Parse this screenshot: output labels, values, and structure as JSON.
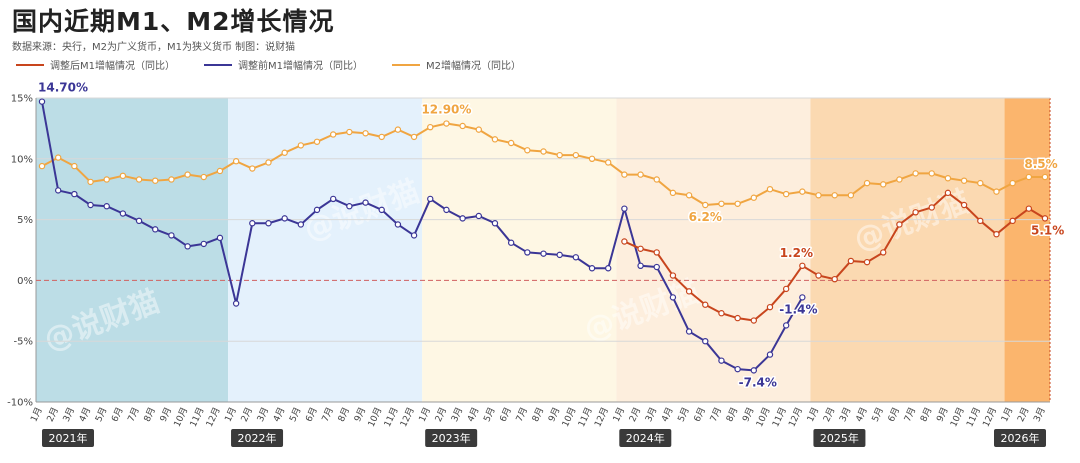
{
  "title": "国内近期M1、M2增长情况",
  "subtitle": "数据来源：央行，M2为广义货币，M1为狭义货币    制图：说财猫",
  "watermark": "@说财猫",
  "colors": {
    "m1_adjusted": "#c8451d",
    "m1_before": "#3b3696",
    "m2": "#f0a541",
    "zero_line": "#d06060",
    "grid": "#d8d8d8",
    "year_bg": "#3a3a3a",
    "band_2021": "#bcdde6",
    "band_2022": "#e4f1fc",
    "band_2023": "#fef7e4",
    "band_2024": "#fdeedd",
    "band_2025": "#fbd9b1",
    "band_2026": "#fbb56d"
  },
  "chart_data": {
    "type": "line",
    "ylim": [
      -10,
      15
    ],
    "yticks": [
      "15%",
      "10%",
      "5%",
      "0%",
      "-5%",
      "-10%"
    ],
    "years": [
      "2021年",
      "2022年",
      "2023年",
      "2024年",
      "2025年",
      "2026年"
    ],
    "month_labels": [
      "1月",
      "2月",
      "3月",
      "4月",
      "5月",
      "6月",
      "7月",
      "8月",
      "9月",
      "10月",
      "11月",
      "12月"
    ],
    "x_start": "2021-01",
    "x_end": "2026-03",
    "series": [
      {
        "name": "调整前M1增幅情况（同比）",
        "key": "m1_before",
        "start": "2021-01",
        "values": [
          14.7,
          7.4,
          7.1,
          6.2,
          6.1,
          5.5,
          4.9,
          4.2,
          3.7,
          2.8,
          3.0,
          3.5,
          -1.9,
          4.7,
          4.7,
          5.1,
          4.6,
          5.8,
          6.7,
          6.1,
          6.4,
          5.8,
          4.6,
          3.7,
          6.7,
          5.8,
          5.1,
          5.3,
          4.7,
          3.1,
          2.3,
          2.2,
          2.1,
          1.9,
          1.0,
          1.0,
          5.9,
          1.2,
          1.1,
          -1.4,
          -4.2,
          -5.0,
          -6.6,
          -7.3,
          -7.4,
          -6.1,
          -3.7,
          -1.4
        ]
      },
      {
        "name": "调整后M1增幅情况（同比）",
        "key": "m1_adjusted",
        "start": "2024-01",
        "values": [
          3.2,
          2.6,
          2.3,
          0.4,
          -0.9,
          -2.0,
          -2.7,
          -3.1,
          -3.3,
          -2.2,
          -0.7,
          1.2,
          0.4,
          0.1,
          1.6,
          1.5,
          2.3,
          4.6,
          5.6,
          6.0,
          7.2,
          6.2,
          4.9,
          3.8,
          4.9,
          5.9,
          5.1
        ]
      },
      {
        "name": "M2增幅情况（同比）",
        "key": "m2",
        "start": "2021-01",
        "values": [
          9.4,
          10.1,
          9.4,
          8.1,
          8.3,
          8.6,
          8.3,
          8.2,
          8.3,
          8.7,
          8.5,
          9.0,
          9.8,
          9.2,
          9.7,
          10.5,
          11.1,
          11.4,
          12.0,
          12.2,
          12.1,
          11.8,
          12.4,
          11.8,
          12.6,
          12.9,
          12.7,
          12.4,
          11.6,
          11.3,
          10.7,
          10.6,
          10.3,
          10.3,
          10.0,
          9.7,
          8.7,
          8.7,
          8.3,
          7.2,
          7.0,
          6.2,
          6.3,
          6.3,
          6.8,
          7.5,
          7.1,
          7.3,
          7.0,
          7.0,
          7.0,
          8.0,
          7.9,
          8.3,
          8.8,
          8.8,
          8.4,
          8.2,
          8.0,
          7.3,
          8.0,
          8.5,
          8.5
        ]
      }
    ],
    "annotations": [
      {
        "text": "14.70%",
        "series": "m1_before",
        "at": "2021-01"
      },
      {
        "text": "12.90%",
        "series": "m2",
        "at": "2023-02"
      },
      {
        "text": "6.2%",
        "series": "m2",
        "at": "2024-06"
      },
      {
        "text": "1.2%",
        "series": "m1_adjusted",
        "at": "2024-12"
      },
      {
        "text": "-1.4%",
        "series": "m1_before",
        "at": "2024-12"
      },
      {
        "text": "-7.4%",
        "series": "m1_before",
        "at": "2024-09"
      },
      {
        "text": "8.5%",
        "series": "m2",
        "at": "2026-03"
      },
      {
        "text": "5.1%",
        "series": "m1_adjusted",
        "at": "2026-03"
      }
    ]
  },
  "legend": [
    {
      "label": "调整后M1增幅情况（同比）",
      "key": "m1_adjusted"
    },
    {
      "label": "调整前M1增幅情况（同比）",
      "key": "m1_before"
    },
    {
      "label": "M2增幅情况（同比）",
      "key": "m2"
    }
  ]
}
